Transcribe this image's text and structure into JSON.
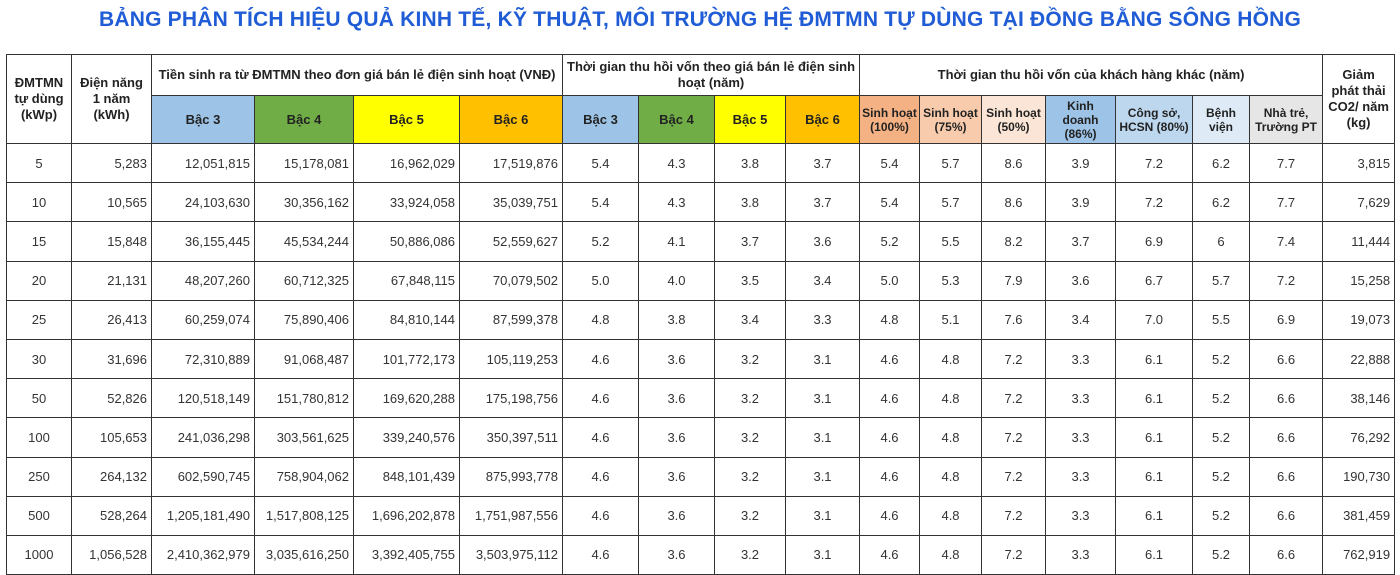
{
  "title": "BẢNG PHÂN TÍCH HIỆU QUẢ KINH TẾ, KỸ THUẬT, MÔI TRƯỜNG HỆ ĐMTMN TỰ DÙNG TẠI ĐỒNG BẰNG SÔNG HỒNG",
  "header": {
    "capacity": "ĐMTMN tự dùng (kWp)",
    "energy": "Điện năng 1 năm (kWh)",
    "money_group": "Tiền sinh ra từ ĐMTMN theo đơn giá bán lẻ điện sinh hoạt (VNĐ)",
    "payback_group": "Thời gian thu hồi vốn theo giá bán lẻ điện sinh hoạt (năm)",
    "other_group": "Thời gian thu hồi vốn của khách hàng khác (năm)",
    "co2": "Giảm phát thải CO2/ năm (kg)",
    "tiers": [
      "Bậc 3",
      "Bậc 4",
      "Bậc 5",
      "Bậc 6"
    ],
    "other": [
      "Sinh hoạt (100%)",
      "Sinh hoạt (75%)",
      "Sinh hoạt (50%)",
      "Kinh doanh (86%)",
      "Công sở, HCSN (80%)",
      "Bệnh viện",
      "Nhà trẻ, Trường PT"
    ]
  },
  "colors": {
    "title": "#1f5cd6",
    "tiers": [
      "#9dc3e6",
      "#70ad47",
      "#ffff00",
      "#ffc000"
    ],
    "other": [
      "#f4b183",
      "#f8cbad",
      "#fbe5d6",
      "#9dc3e6",
      "#bdd7ee",
      "#deebf7",
      "#e7e6e6"
    ]
  },
  "rows": [
    [
      "5",
      "5,283",
      "12,051,815",
      "15,178,081",
      "16,962,029",
      "17,519,876",
      "5.4",
      "4.3",
      "3.8",
      "3.7",
      "5.4",
      "5.7",
      "8.6",
      "3.9",
      "7.2",
      "6.2",
      "7.7",
      "3,815"
    ],
    [
      "10",
      "10,565",
      "24,103,630",
      "30,356,162",
      "33,924,058",
      "35,039,751",
      "5.4",
      "4.3",
      "3.8",
      "3.7",
      "5.4",
      "5.7",
      "8.6",
      "3.9",
      "7.2",
      "6.2",
      "7.7",
      "7,629"
    ],
    [
      "15",
      "15,848",
      "36,155,445",
      "45,534,244",
      "50,886,086",
      "52,559,627",
      "5.2",
      "4.1",
      "3.7",
      "3.6",
      "5.2",
      "5.5",
      "8.2",
      "3.7",
      "6.9",
      "6",
      "7.4",
      "11,444"
    ],
    [
      "20",
      "21,131",
      "48,207,260",
      "60,712,325",
      "67,848,115",
      "70,079,502",
      "5.0",
      "4.0",
      "3.5",
      "3.4",
      "5.0",
      "5.3",
      "7.9",
      "3.6",
      "6.7",
      "5.7",
      "7.2",
      "15,258"
    ],
    [
      "25",
      "26,413",
      "60,259,074",
      "75,890,406",
      "84,810,144",
      "87,599,378",
      "4.8",
      "3.8",
      "3.4",
      "3.3",
      "4.8",
      "5.1",
      "7.6",
      "3.4",
      "7.0",
      "5.5",
      "6.9",
      "19,073"
    ],
    [
      "30",
      "31,696",
      "72,310,889",
      "91,068,487",
      "101,772,173",
      "105,119,253",
      "4.6",
      "3.6",
      "3.2",
      "3.1",
      "4.6",
      "4.8",
      "7.2",
      "3.3",
      "6.1",
      "5.2",
      "6.6",
      "22,888"
    ],
    [
      "50",
      "52,826",
      "120,518,149",
      "151,780,812",
      "169,620,288",
      "175,198,756",
      "4.6",
      "3.6",
      "3.2",
      "3.1",
      "4.6",
      "4.8",
      "7.2",
      "3.3",
      "6.1",
      "5.2",
      "6.6",
      "38,146"
    ],
    [
      "100",
      "105,653",
      "241,036,298",
      "303,561,625",
      "339,240,576",
      "350,397,511",
      "4.6",
      "3.6",
      "3.2",
      "3.1",
      "4.6",
      "4.8",
      "7.2",
      "3.3",
      "6.1",
      "5.2",
      "6.6",
      "76,292"
    ],
    [
      "250",
      "264,132",
      "602,590,745",
      "758,904,062",
      "848,101,439",
      "875,993,778",
      "4.6",
      "3.6",
      "3.2",
      "3.1",
      "4.6",
      "4.8",
      "7.2",
      "3.3",
      "6.1",
      "5.2",
      "6.6",
      "190,730"
    ],
    [
      "500",
      "528,264",
      "1,205,181,490",
      "1,517,808,125",
      "1,696,202,878",
      "1,751,987,556",
      "4.6",
      "3.6",
      "3.2",
      "3.1",
      "4.6",
      "4.8",
      "7.2",
      "3.3",
      "6.1",
      "5.2",
      "6.6",
      "381,459"
    ],
    [
      "1000",
      "1,056,528",
      "2,410,362,979",
      "3,035,616,250",
      "3,392,405,755",
      "3,503,975,112",
      "4.6",
      "3.6",
      "3.2",
      "3.1",
      "4.6",
      "4.8",
      "7.2",
      "3.3",
      "6.1",
      "5.2",
      "6.6",
      "762,919"
    ]
  ]
}
